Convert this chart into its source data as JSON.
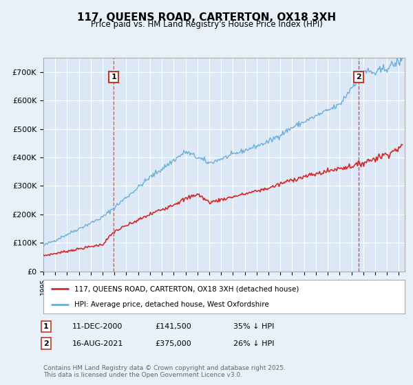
{
  "title": "117, QUEENS ROAD, CARTERTON, OX18 3XH",
  "subtitle": "Price paid vs. HM Land Registry's House Price Index (HPI)",
  "background_color": "#e8f0f8",
  "plot_bg_color": "#dce8f5",
  "ylim": [
    0,
    750000
  ],
  "yticks": [
    0,
    100000,
    200000,
    300000,
    400000,
    500000,
    600000,
    700000
  ],
  "ytick_labels": [
    "£0",
    "£100K",
    "£200K",
    "£300K",
    "£400K",
    "£500K",
    "£600K",
    "£700K"
  ],
  "xlim_start": 1995.0,
  "xlim_end": 2025.5,
  "hpi_color": "#6baed6",
  "price_color": "#d62728",
  "marker1_date": 2000.94,
  "marker1_label": "1",
  "marker2_date": 2021.62,
  "marker2_label": "2",
  "legend_line1": "117, QUEENS ROAD, CARTERTON, OX18 3XH (detached house)",
  "legend_line2": "HPI: Average price, detached house, West Oxfordshire",
  "footer": "Contains HM Land Registry data © Crown copyright and database right 2025.\nThis data is licensed under the Open Government Licence v3.0.",
  "grid_color": "#ffffff",
  "dashed_line_color": "#d62728"
}
